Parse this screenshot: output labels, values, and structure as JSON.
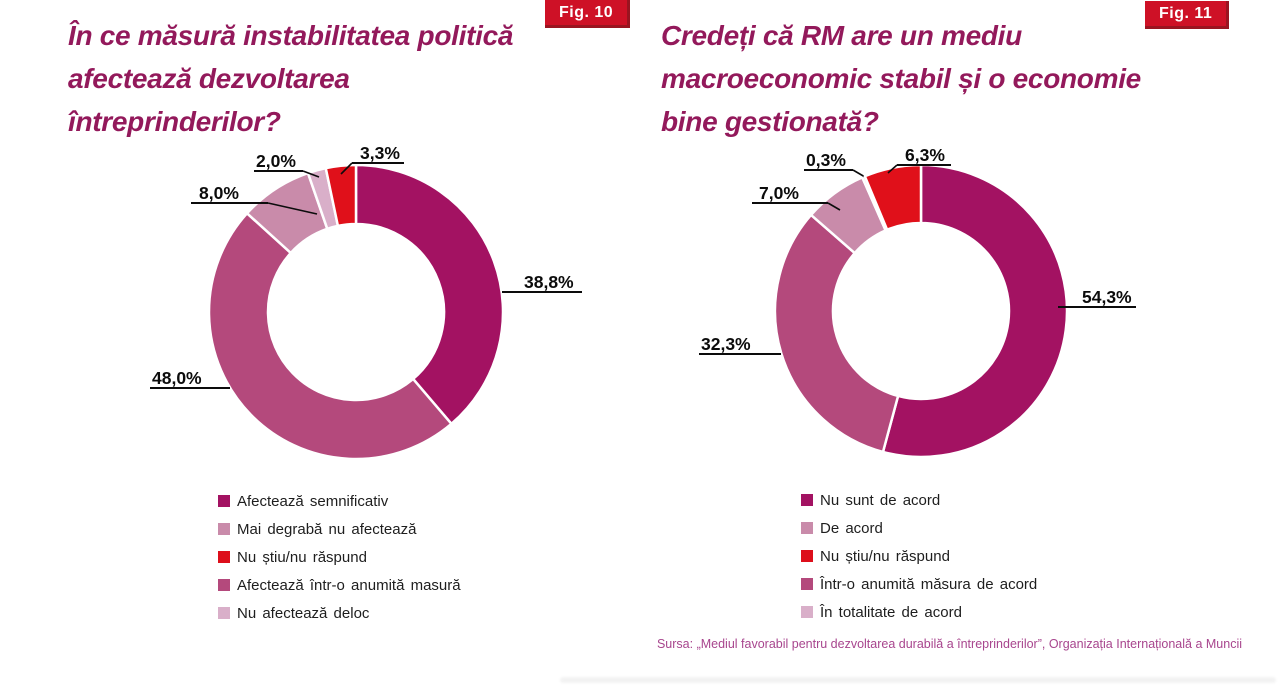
{
  "figures": [
    {
      "badge": "Fig. 10",
      "title_lines": [
        "În ce măsură instabilitatea politică",
        "afectează dezvoltarea",
        "întreprinderilor?"
      ]
    },
    {
      "badge": "Fig. 11",
      "title_lines": [
        "Credeți că RM are un mediu",
        "macroeconomic stabil și o economie",
        "bine gestionată?"
      ]
    }
  ],
  "chart_data": [
    {
      "type": "pie",
      "variant": "donut",
      "title": "În ce măsură instabilitatea politică afectează dezvoltarea întreprinderilor?",
      "figure_label": "Fig. 10",
      "hole_ratio": 0.6,
      "start_angle": "12 o'clock",
      "direction": "clockwise",
      "slices": [
        {
          "label": "Afectează semnificativ",
          "value": 38.8,
          "display": "38,8%",
          "color": "#A31262"
        },
        {
          "label": "Afectează într-o anumită masură",
          "value": 48.0,
          "display": "48,0%",
          "color": "#B4497C"
        },
        {
          "label": "Mai degrabă nu afectează",
          "value": 8.0,
          "display": "8,0%",
          "color": "#C98BAA"
        },
        {
          "label": "Nu afectează deloc",
          "value": 2.0,
          "display": "2,0%",
          "color": "#D9AFC9"
        },
        {
          "label": "Nu știu/nu răspund",
          "value": 3.3,
          "display": "3,3%",
          "color": "#E0101A"
        }
      ],
      "legend": [
        {
          "label": "Afectează  semnificativ",
          "color": "#A31262"
        },
        {
          "label": "Mai  degrabă  nu afectează",
          "color": "#C98BAA"
        },
        {
          "label": "Nu știu/nu  răspund",
          "color": "#DD0F1B"
        },
        {
          "label": "Afectează  într-o  anumită  masură",
          "color": "#B4497C"
        },
        {
          "label": "Nu afectează  deloc",
          "color": "#D9AFC9"
        }
      ]
    },
    {
      "type": "pie",
      "variant": "donut",
      "title": "Credeți că RM are un mediu macroeconomic stabil și o economie bine gestionată?",
      "figure_label": "Fig. 11",
      "hole_ratio": 0.6,
      "start_angle": "12 o'clock",
      "direction": "clockwise",
      "slices": [
        {
          "label": "Nu sunt de acord",
          "value": 54.3,
          "display": "54,3%",
          "color": "#A31262"
        },
        {
          "label": "Într-o anumită măsura de acord",
          "value": 32.3,
          "display": "32,3%",
          "color": "#B4497C"
        },
        {
          "label": "De acord",
          "value": 7.0,
          "display": "7,0%",
          "color": "#C98BAA"
        },
        {
          "label": "În totalitate de acord",
          "value": 0.3,
          "display": "0,3%",
          "color": "#D9AFC9"
        },
        {
          "label": "Nu știu/nu răspund",
          "value": 6.3,
          "display": "6,3%",
          "color": "#E0101A"
        }
      ],
      "legend": [
        {
          "label": "Nu sunt de acord",
          "color": "#A31262"
        },
        {
          "label": "De acord",
          "color": "#C98BAA"
        },
        {
          "label": "Nu știu/nu răspund",
          "color": "#DD0F1B"
        },
        {
          "label": "Într-o anumită măsura de acord",
          "color": "#B4497C"
        },
        {
          "label": "În totalitate de acord",
          "color": "#D9AFC9"
        }
      ]
    }
  ],
  "source_note": "Sursa: „Mediul favorabil pentru dezvoltarea durabilă a întreprinderilor”, Organizația Internațională a Muncii"
}
